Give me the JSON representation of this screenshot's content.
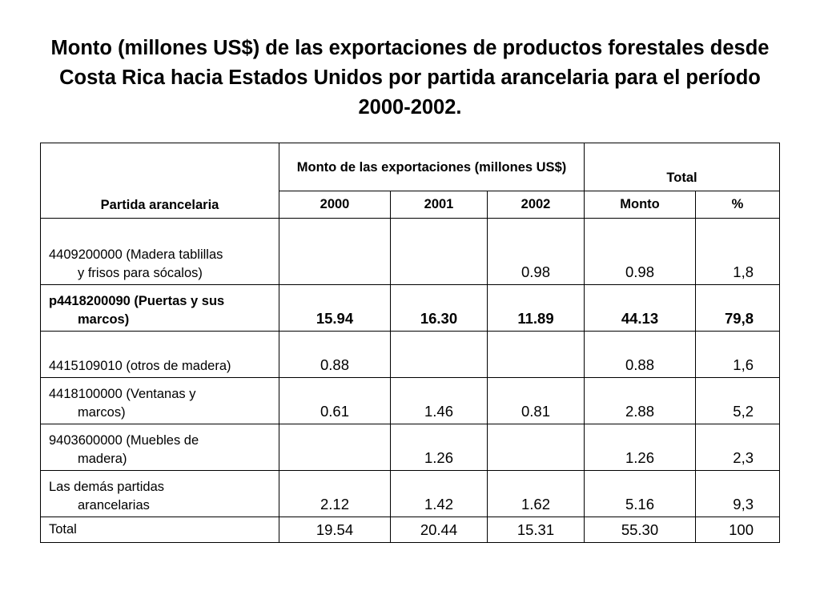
{
  "title": "Monto (millones US$) de las exportaciones de productos forestales desde Costa Rica hacia Estados Unidos por partida arancelaria para el período 2000-2002.",
  "table": {
    "headers": {
      "partida": "Partida arancelaria",
      "monto_group": "Monto de las exportaciones (millones US$)",
      "total_group": "Total",
      "year_2000": "2000",
      "year_2001": "2001",
      "year_2002": "2002",
      "monto": "Monto",
      "pct": "%"
    },
    "rows": [
      {
        "label_line1": "4409200000 (Madera tablillas",
        "label_line2": "y frisos para sócalos)",
        "v2000": "",
        "v2001": "",
        "v2002": "0.98",
        "monto": "0.98",
        "pct": "1,8",
        "bold": false
      },
      {
        "label_line1": "p4418200090 (Puertas y sus",
        "label_line2": "marcos)",
        "v2000": "15.94",
        "v2001": "16.30",
        "v2002": "11.89",
        "monto": "44.13",
        "pct": "79,8",
        "bold": true
      },
      {
        "label_line1": "4415109010 (otros de madera)",
        "label_line2": "",
        "v2000": "0.88",
        "v2001": "",
        "v2002": "",
        "monto": "0.88",
        "pct": "1,6",
        "bold": false
      },
      {
        "label_line1": "4418100000 (Ventanas y",
        "label_line2": "marcos)",
        "v2000": "0.61",
        "v2001": "1.46",
        "v2002": "0.81",
        "monto": "2.88",
        "pct": "5,2",
        "bold": false
      },
      {
        "label_line1": "9403600000 (Muebles de",
        "label_line2": "madera)",
        "v2000": "",
        "v2001": "1.26",
        "v2002": "",
        "monto": "1.26",
        "pct": "2,3",
        "bold": false
      },
      {
        "label_line1": "Las demás partidas",
        "label_line2": "arancelarias",
        "v2000": "2.12",
        "v2001": "1.42",
        "v2002": "1.62",
        "monto": "5.16",
        "pct": "9,3",
        "bold": false
      }
    ],
    "total_row": {
      "label": "Total",
      "v2000": "19.54",
      "v2001": "20.44",
      "v2002": "15.31",
      "monto": "55.30",
      "pct": "100"
    }
  }
}
